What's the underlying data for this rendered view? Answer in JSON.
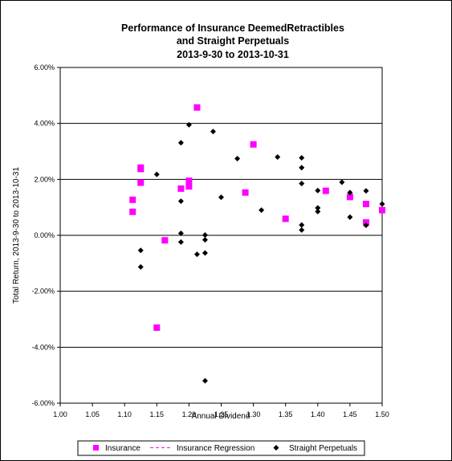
{
  "chart_data": {
    "type": "scatter",
    "title": [
      "Performance of Insurance DeemedRetractibles",
      "and Straight Perpetuals",
      "2013-9-30 to 2013-10-31"
    ],
    "xlabel": "Annual Dividend",
    "ylabel": "Total Return, 2013-9-30 to 2013-10-31",
    "xlim": [
      1.0,
      1.5
    ],
    "ylim": [
      -6.0,
      6.0
    ],
    "x_ticks": [
      1.0,
      1.05,
      1.1,
      1.15,
      1.2,
      1.25,
      1.3,
      1.35,
      1.4,
      1.45,
      1.5
    ],
    "x_tick_labels": [
      "1.00",
      "1.05",
      "1.10",
      "1.15",
      "1.20",
      "1.25",
      "1.30",
      "1.35",
      "1.40",
      "1.45",
      "1.50"
    ],
    "y_ticks": [
      -6,
      -4,
      -2,
      0,
      2,
      4,
      6
    ],
    "y_tick_labels": [
      "-6.00%",
      "-4.00%",
      "-2.00%",
      "0.00%",
      "2.00%",
      "4.00%",
      "6.00%"
    ],
    "grid": "horizontal",
    "legend_placement": "bottom",
    "series": [
      {
        "name": "Insurance",
        "marker": "square",
        "color": "#ff00ff",
        "points": [
          {
            "x": 1.1125,
            "y": 1.27
          },
          {
            "x": 1.1125,
            "y": 0.84
          },
          {
            "x": 1.125,
            "y": 2.42
          },
          {
            "x": 1.125,
            "y": 2.37
          },
          {
            "x": 1.125,
            "y": 1.88
          },
          {
            "x": 1.15,
            "y": -3.3
          },
          {
            "x": 1.1625,
            "y": -0.18
          },
          {
            "x": 1.1875,
            "y": 1.67
          },
          {
            "x": 1.2,
            "y": 1.95
          },
          {
            "x": 1.2,
            "y": 1.75
          },
          {
            "x": 1.2125,
            "y": 4.57
          },
          {
            "x": 1.2875,
            "y": 1.53
          },
          {
            "x": 1.3,
            "y": 3.25
          },
          {
            "x": 1.35,
            "y": 0.59
          },
          {
            "x": 1.4125,
            "y": 1.59
          },
          {
            "x": 1.45,
            "y": 1.37
          },
          {
            "x": 1.475,
            "y": 1.12
          },
          {
            "x": 1.475,
            "y": 0.46
          },
          {
            "x": 1.5,
            "y": 0.9
          }
        ]
      },
      {
        "name": "Insurance Regression",
        "marker": "dashed-line",
        "color": "#ff00ff",
        "points": []
      },
      {
        "name": "Straight Perpetuals",
        "marker": "diamond",
        "color": "#000000",
        "points": [
          {
            "x": 1.125,
            "y": -0.54
          },
          {
            "x": 1.125,
            "y": -1.13
          },
          {
            "x": 1.15,
            "y": 2.18
          },
          {
            "x": 1.1875,
            "y": 3.31
          },
          {
            "x": 1.1875,
            "y": 1.22
          },
          {
            "x": 1.1875,
            "y": 0.07
          },
          {
            "x": 1.1875,
            "y": -0.24
          },
          {
            "x": 1.2,
            "y": 3.95
          },
          {
            "x": 1.2125,
            "y": -0.68
          },
          {
            "x": 1.225,
            "y": 0.01
          },
          {
            "x": 1.225,
            "y": -0.16
          },
          {
            "x": 1.225,
            "y": -0.63
          },
          {
            "x": 1.225,
            "y": -5.2
          },
          {
            "x": 1.2375,
            "y": 3.71
          },
          {
            "x": 1.25,
            "y": 1.36
          },
          {
            "x": 1.275,
            "y": 2.74
          },
          {
            "x": 1.3125,
            "y": 0.9
          },
          {
            "x": 1.3375,
            "y": 2.8
          },
          {
            "x": 1.375,
            "y": 2.77
          },
          {
            "x": 1.375,
            "y": 2.42
          },
          {
            "x": 1.375,
            "y": 1.85
          },
          {
            "x": 1.375,
            "y": 0.37
          },
          {
            "x": 1.375,
            "y": 0.19
          },
          {
            "x": 1.4,
            "y": 1.6
          },
          {
            "x": 1.4,
            "y": 0.98
          },
          {
            "x": 1.4,
            "y": 0.85
          },
          {
            "x": 1.4375,
            "y": 1.9
          },
          {
            "x": 1.45,
            "y": 1.53
          },
          {
            "x": 1.45,
            "y": 0.65
          },
          {
            "x": 1.475,
            "y": 1.59
          },
          {
            "x": 1.475,
            "y": 0.36
          },
          {
            "x": 1.5,
            "y": 1.12
          }
        ]
      }
    ]
  }
}
